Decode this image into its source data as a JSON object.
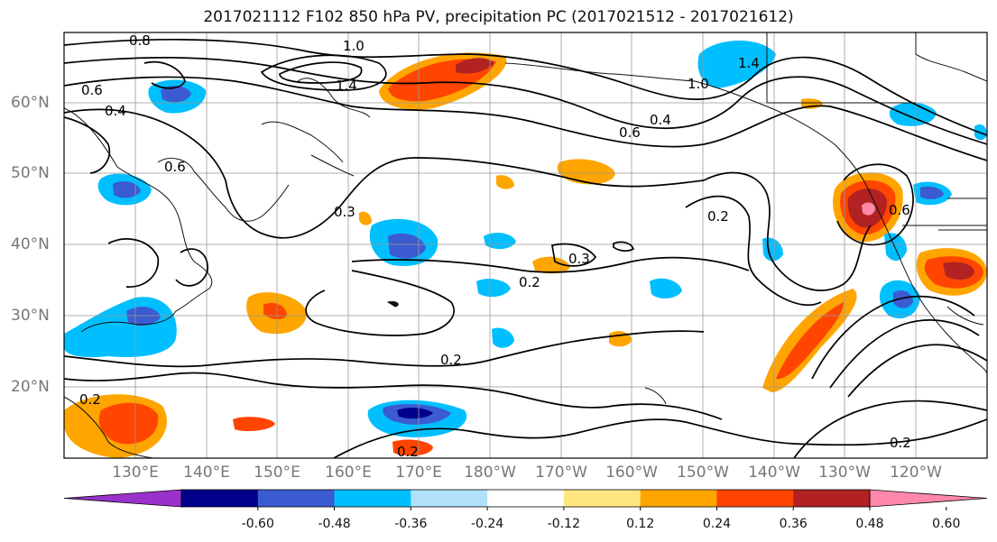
{
  "title": "2017021112 F102 850 hPa PV, precipitation PC (2017021512 - 2017021612)",
  "lat_labels": [
    "60°N",
    "50°N",
    "40°N",
    "30°N",
    "20°N"
  ],
  "lon_labels": [
    "130°E",
    "140°E",
    "150°E",
    "160°E",
    "170°E",
    "180°W",
    "170°W",
    "160°W",
    "150°W",
    "140°W",
    "130°W",
    "120°W"
  ],
  "colorbar": {
    "ticks": [
      "-0.60",
      "-0.48",
      "-0.36",
      "-0.24",
      "-0.12",
      "0.12",
      "0.24",
      "0.36",
      "0.48",
      "0.60"
    ],
    "colors": [
      "#9932cc",
      "#00008b",
      "#3b5bd0",
      "#00bfff",
      "#b0e0fa",
      "#ffffff",
      "#ffe680",
      "#ffa500",
      "#ff4500",
      "#b22222",
      "#ff88aa"
    ]
  },
  "contour_labels": [
    "0.8",
    "1.0",
    "1.4",
    "0.6",
    "0.4",
    "0.6",
    "0.3",
    "0.2",
    "0.3",
    "0.2",
    "0.2",
    "0.2",
    "0.2",
    "1.4",
    "1.0",
    "0.4",
    "0.6",
    "0.2",
    "0.6"
  ]
}
